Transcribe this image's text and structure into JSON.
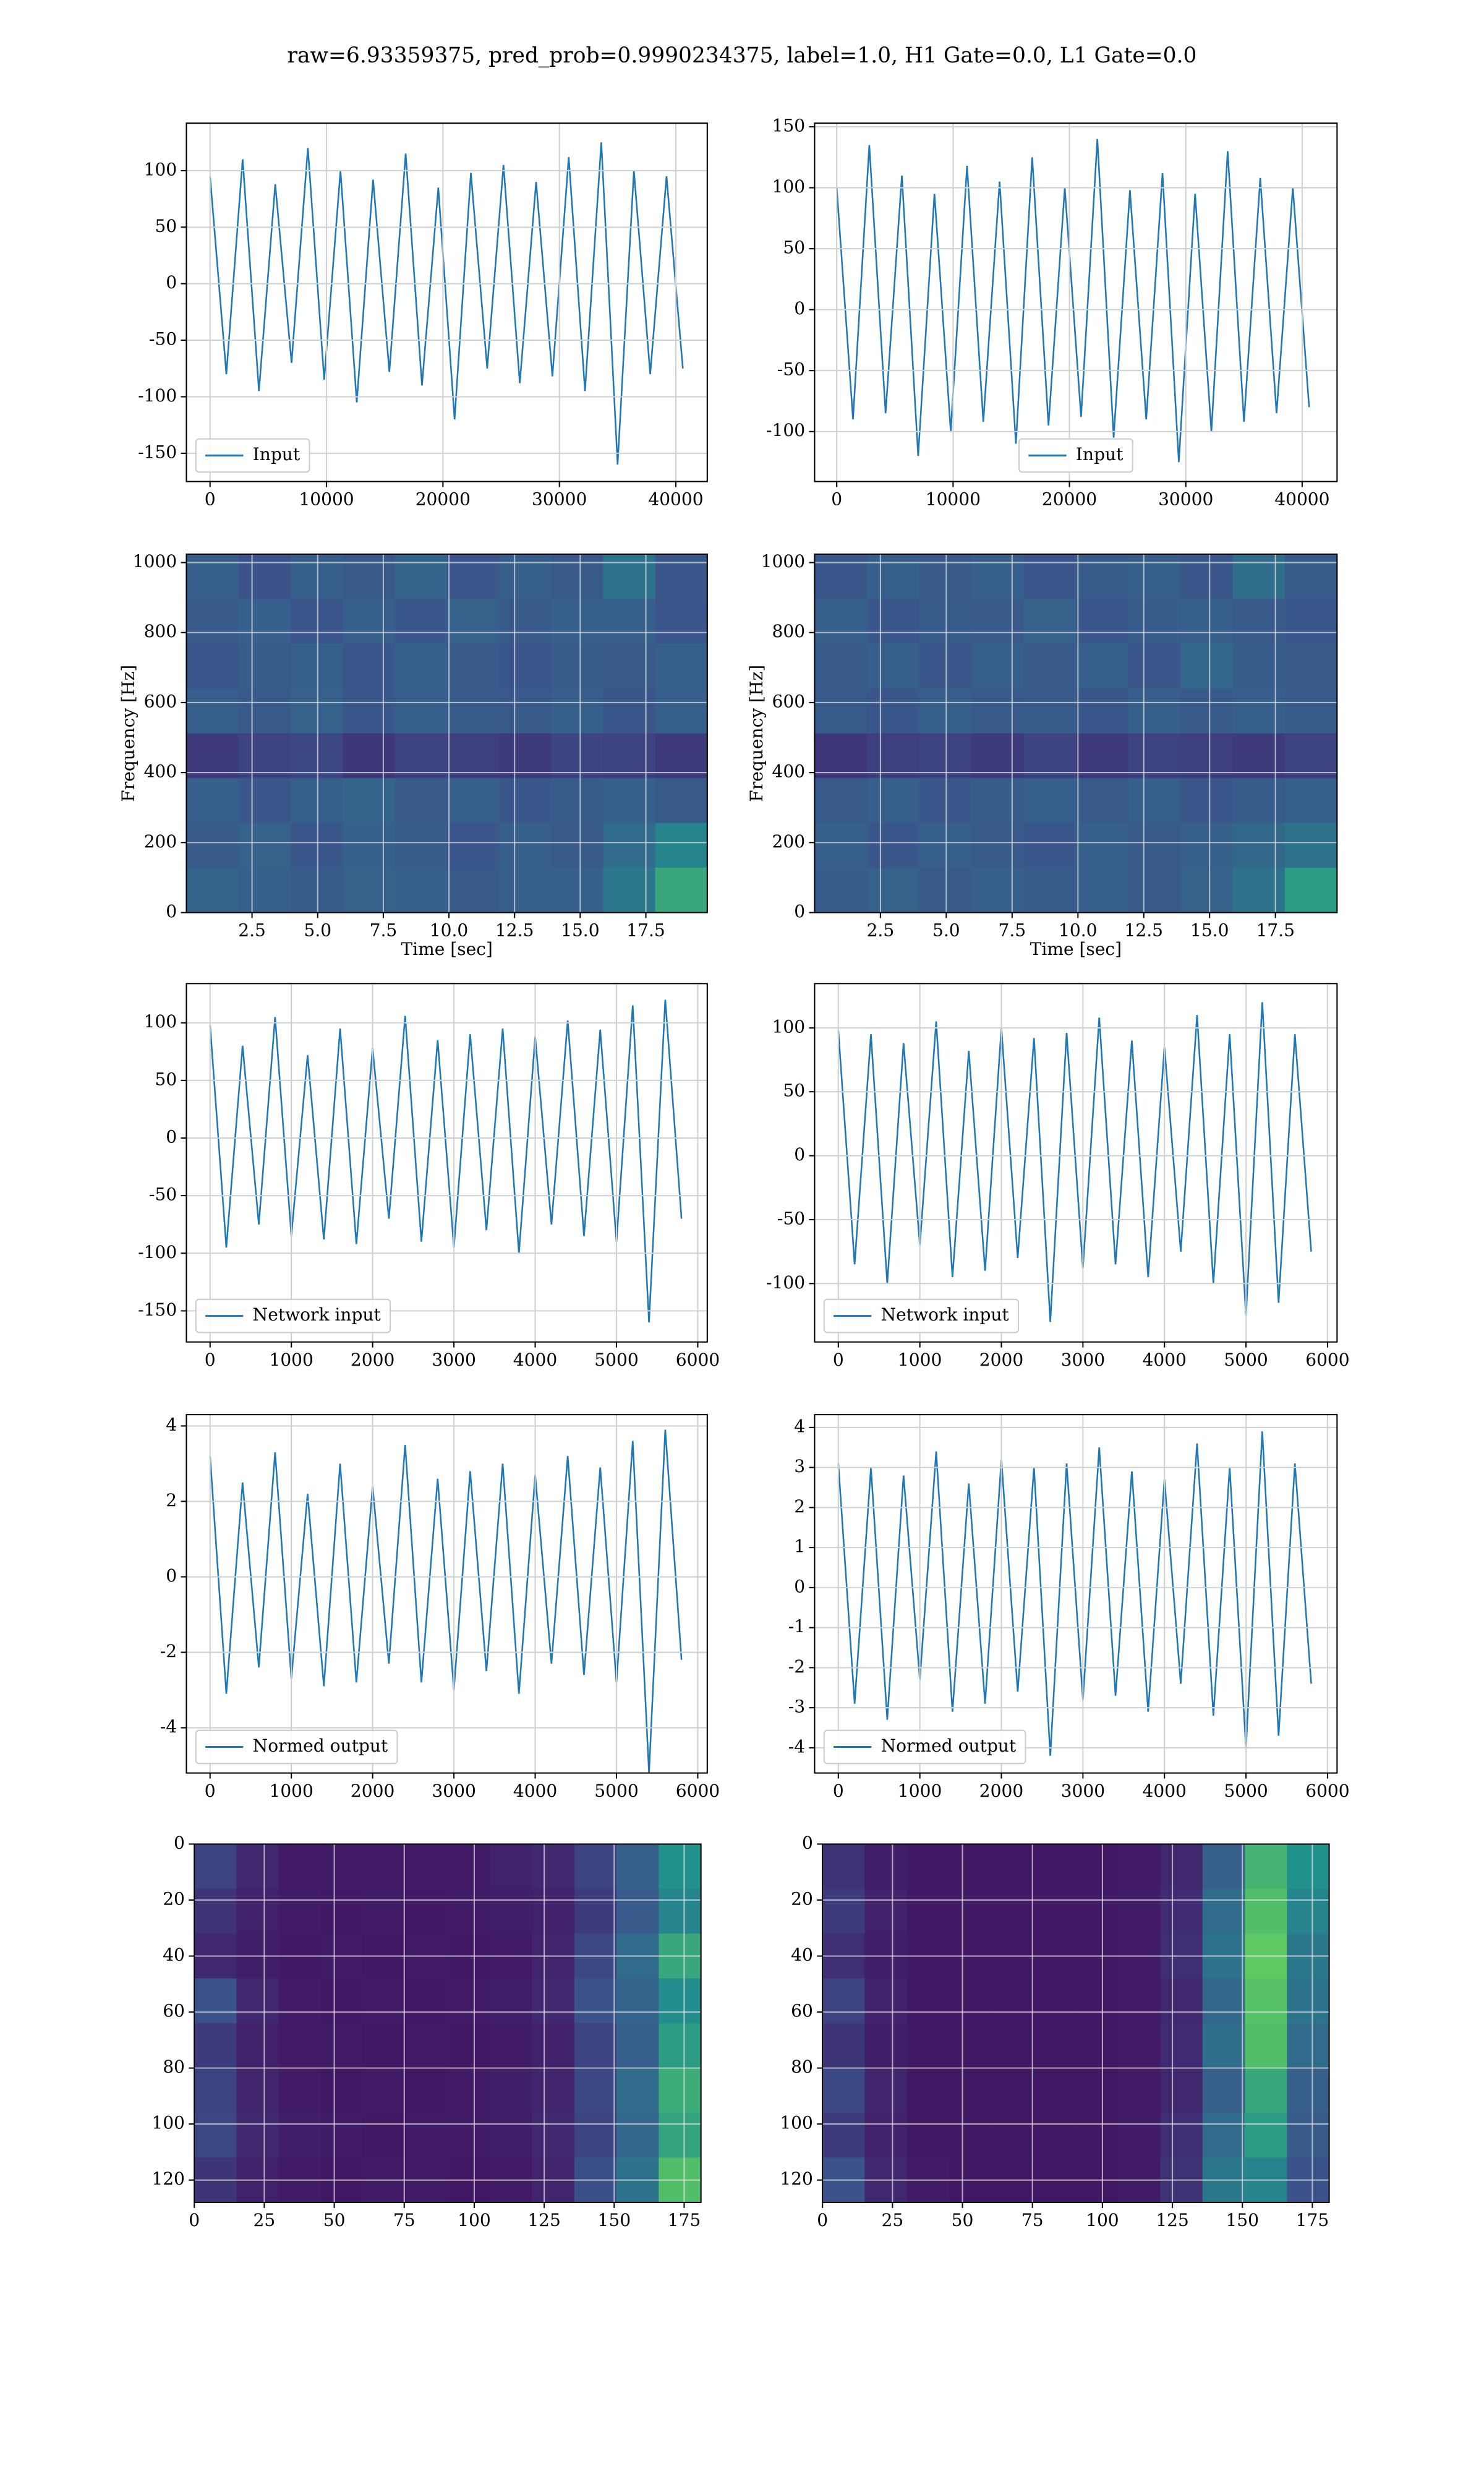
{
  "title": "raw=6.93359375, pred_prob=0.9990234375, label=1.0, H1 Gate=0.0, L1 Gate=0.0",
  "chart_data": [
    {
      "type": "line",
      "x": [
        0,
        1400,
        2800,
        4200,
        5600,
        7000,
        8400,
        9800,
        11200,
        12600,
        14000,
        15400,
        16800,
        18200,
        19600,
        21000,
        22400,
        23800,
        25200,
        26600,
        28000,
        29400,
        30800,
        32200,
        33600,
        35000,
        36400,
        37800,
        39200,
        40600
      ],
      "series": [
        {
          "name": "Input",
          "color": "#1f77b4",
          "values": [
            95,
            -80,
            110,
            -95,
            88,
            -70,
            120,
            -85,
            100,
            -105,
            92,
            -78,
            115,
            -90,
            85,
            -120,
            98,
            -75,
            105,
            -88,
            90,
            -82,
            112,
            -95,
            125,
            -160,
            100,
            -80,
            95,
            -75
          ]
        }
      ],
      "xlim": [
        -2030,
        42700
      ],
      "ylim": [
        -175,
        142
      ],
      "xticks": [
        0,
        10000,
        20000,
        30000,
        40000
      ],
      "yticks": [
        -150,
        -100,
        -50,
        0,
        50,
        100
      ],
      "grid": true,
      "legend": "lower left"
    },
    {
      "type": "line",
      "x": [
        0,
        1400,
        2800,
        4200,
        5600,
        7000,
        8400,
        9800,
        11200,
        12600,
        14000,
        15400,
        16800,
        18200,
        19600,
        21000,
        22400,
        23800,
        25200,
        26600,
        28000,
        29400,
        30800,
        32200,
        33600,
        35000,
        36400,
        37800,
        39200,
        40600
      ],
      "series": [
        {
          "name": "Input",
          "color": "#1f77b4",
          "values": [
            100,
            -90,
            135,
            -85,
            110,
            -120,
            95,
            -100,
            118,
            -92,
            105,
            -110,
            125,
            -95,
            100,
            -88,
            140,
            -105,
            98,
            -90,
            112,
            -125,
            95,
            -100,
            130,
            -92,
            108,
            -85,
            100,
            -80
          ]
        }
      ],
      "xlim": [
        -1900,
        43000
      ],
      "ylim": [
        -141,
        153
      ],
      "xticks": [
        0,
        10000,
        20000,
        30000,
        40000
      ],
      "yticks": [
        -100,
        -50,
        0,
        50,
        100,
        150
      ],
      "grid": true,
      "legend": "lower center"
    },
    {
      "type": "heatmap",
      "xlabel": "Time [sec]",
      "ylabel": "Frequency [Hz]",
      "colormap": "viridis",
      "xlim": [
        0,
        19.84
      ],
      "ylim": [
        0,
        1024
      ],
      "xticks": [
        2.5,
        {
          "value": 5,
          "label": "5.0"
        },
        7.5,
        {
          "value": 10,
          "label": "10.0"
        },
        12.5,
        {
          "value": 15,
          "label": "15.0"
        },
        17.5
      ],
      "yticks": [
        0,
        200,
        400,
        600,
        800,
        1000
      ],
      "grid": true,
      "z": [
        [
          0.3,
          0.25,
          0.3,
          0.28,
          0.32,
          0.26,
          0.3,
          0.28,
          0.38,
          0.27
        ],
        [
          0.28,
          0.3,
          0.26,
          0.3,
          0.27,
          0.31,
          0.28,
          0.3,
          0.3,
          0.26
        ],
        [
          0.26,
          0.29,
          0.3,
          0.27,
          0.3,
          0.28,
          0.26,
          0.29,
          0.28,
          0.3
        ],
        [
          0.3,
          0.28,
          0.31,
          0.27,
          0.3,
          0.29,
          0.28,
          0.3,
          0.27,
          0.3
        ],
        [
          0.18,
          0.2,
          0.22,
          0.17,
          0.2,
          0.19,
          0.18,
          0.21,
          0.2,
          0.18
        ],
        [
          0.3,
          0.27,
          0.3,
          0.32,
          0.28,
          0.3,
          0.27,
          0.29,
          0.3,
          0.28
        ],
        [
          0.28,
          0.31,
          0.27,
          0.3,
          0.29,
          0.26,
          0.3,
          0.28,
          0.35,
          0.45
        ],
        [
          0.32,
          0.3,
          0.29,
          0.31,
          0.3,
          0.28,
          0.3,
          0.3,
          0.4,
          0.6
        ]
      ]
    },
    {
      "type": "heatmap",
      "xlabel": "Time [sec]",
      "ylabel": "Frequency [Hz]",
      "colormap": "viridis",
      "xlim": [
        0,
        19.84
      ],
      "ylim": [
        0,
        1024
      ],
      "xticks": [
        2.5,
        {
          "value": 5,
          "label": "5.0"
        },
        7.5,
        {
          "value": 10,
          "label": "10.0"
        },
        12.5,
        {
          "value": 15,
          "label": "15.0"
        },
        17.5
      ],
      "yticks": [
        0,
        200,
        400,
        600,
        800,
        1000
      ],
      "grid": true,
      "z": [
        [
          0.27,
          0.3,
          0.28,
          0.3,
          0.26,
          0.29,
          0.3,
          0.27,
          0.36,
          0.29
        ],
        [
          0.3,
          0.27,
          0.29,
          0.28,
          0.31,
          0.27,
          0.29,
          0.3,
          0.28,
          0.27
        ],
        [
          0.28,
          0.3,
          0.27,
          0.3,
          0.28,
          0.3,
          0.27,
          0.33,
          0.29,
          0.28
        ],
        [
          0.29,
          0.27,
          0.3,
          0.28,
          0.29,
          0.27,
          0.3,
          0.28,
          0.3,
          0.29
        ],
        [
          0.17,
          0.19,
          0.2,
          0.18,
          0.21,
          0.18,
          0.2,
          0.19,
          0.18,
          0.2
        ],
        [
          0.28,
          0.3,
          0.27,
          0.29,
          0.3,
          0.28,
          0.3,
          0.27,
          0.29,
          0.3
        ],
        [
          0.3,
          0.27,
          0.3,
          0.28,
          0.27,
          0.3,
          0.28,
          0.3,
          0.34,
          0.38
        ],
        [
          0.29,
          0.31,
          0.28,
          0.3,
          0.29,
          0.3,
          0.28,
          0.31,
          0.38,
          0.55
        ]
      ]
    },
    {
      "type": "line",
      "x": [
        0,
        200,
        400,
        600,
        800,
        1000,
        1200,
        1400,
        1600,
        1800,
        2000,
        2200,
        2400,
        2600,
        2800,
        3000,
        3200,
        3400,
        3600,
        3800,
        4000,
        4200,
        4400,
        4600,
        4800,
        5000,
        5200,
        5400,
        5600,
        5800
      ],
      "series": [
        {
          "name": "Network input",
          "color": "#1f77b4",
          "values": [
            98,
            -95,
            80,
            -75,
            105,
            -85,
            72,
            -88,
            95,
            -92,
            78,
            -70,
            106,
            -90,
            85,
            -95,
            90,
            -80,
            95,
            -100,
            88,
            -75,
            102,
            -85,
            94,
            -90,
            115,
            -160,
            120,
            -70
          ]
        }
      ],
      "xlim": [
        -291,
        6117
      ],
      "ylim": [
        -177,
        134
      ],
      "xticks": [
        0,
        1000,
        2000,
        3000,
        4000,
        5000,
        6000
      ],
      "yticks": [
        -150,
        -100,
        -50,
        0,
        50,
        100
      ],
      "grid": true,
      "legend": "lower left"
    },
    {
      "type": "line",
      "x": [
        0,
        200,
        400,
        600,
        800,
        1000,
        1200,
        1400,
        1600,
        1800,
        2000,
        2200,
        2400,
        2600,
        2800,
        3000,
        3200,
        3400,
        3600,
        3800,
        4000,
        4200,
        4400,
        4600,
        4800,
        5000,
        5200,
        5400,
        5600,
        5800
      ],
      "series": [
        {
          "name": "Network input",
          "color": "#1f77b4",
          "values": [
            98,
            -85,
            95,
            -100,
            88,
            -70,
            105,
            -95,
            82,
            -90,
            100,
            -80,
            92,
            -130,
            96,
            -88,
            108,
            -85,
            90,
            -95,
            85,
            -75,
            110,
            -100,
            95,
            -125,
            120,
            -115,
            95,
            -75
          ]
        }
      ],
      "xlim": [
        -291,
        6117
      ],
      "ylim": [
        -145.7,
        134.6
      ],
      "xticks": [
        0,
        1000,
        2000,
        3000,
        4000,
        5000,
        6000
      ],
      "yticks": [
        -100,
        -50,
        0,
        50,
        100
      ],
      "grid": true,
      "legend": "lower left"
    },
    {
      "type": "line",
      "x": [
        0,
        200,
        400,
        600,
        800,
        1000,
        1200,
        1400,
        1600,
        1800,
        2000,
        2200,
        2400,
        2600,
        2800,
        3000,
        3200,
        3400,
        3600,
        3800,
        4000,
        4200,
        4400,
        4600,
        4800,
        5000,
        5200,
        5400,
        5600,
        5800
      ],
      "series": [
        {
          "name": "Normed output",
          "color": "#1f77b4",
          "values": [
            3.2,
            -3.1,
            2.5,
            -2.4,
            3.3,
            -2.7,
            2.2,
            -2.9,
            3.0,
            -2.8,
            2.4,
            -2.3,
            3.5,
            -2.8,
            2.6,
            -3.0,
            2.8,
            -2.5,
            3.0,
            -3.1,
            2.7,
            -2.3,
            3.2,
            -2.6,
            2.9,
            -2.8,
            3.6,
            -5.2,
            3.9,
            -2.2
          ]
        }
      ],
      "xlim": [
        -291,
        6117
      ],
      "ylim": [
        -5.2,
        4.3
      ],
      "xticks": [
        0,
        1000,
        2000,
        3000,
        4000,
        5000,
        6000
      ],
      "yticks": [
        -4,
        -2,
        0,
        2,
        4
      ],
      "grid": true,
      "legend": "lower left"
    },
    {
      "type": "line",
      "x": [
        0,
        200,
        400,
        600,
        800,
        1000,
        1200,
        1400,
        1600,
        1800,
        2000,
        2200,
        2400,
        2600,
        2800,
        3000,
        3200,
        3400,
        3600,
        3800,
        4000,
        4200,
        4400,
        4600,
        4800,
        5000,
        5200,
        5400,
        5600,
        5800
      ],
      "series": [
        {
          "name": "Normed output",
          "color": "#1f77b4",
          "values": [
            3.1,
            -2.9,
            3.0,
            -3.3,
            2.8,
            -2.3,
            3.4,
            -3.1,
            2.6,
            -2.9,
            3.2,
            -2.6,
            3.0,
            -4.2,
            3.1,
            -2.8,
            3.5,
            -2.7,
            2.9,
            -3.1,
            2.7,
            -2.4,
            3.6,
            -3.2,
            3.0,
            -4.0,
            3.9,
            -3.7,
            3.1,
            -2.4
          ]
        }
      ],
      "xlim": [
        -291,
        6117
      ],
      "ylim": [
        -4.63,
        4.32
      ],
      "xticks": [
        0,
        1000,
        2000,
        3000,
        4000,
        5000,
        6000
      ],
      "yticks": [
        -4,
        -3,
        -2,
        -1,
        0,
        1,
        2,
        3,
        4
      ],
      "grid": true,
      "legend": "lower left"
    },
    {
      "type": "heatmap",
      "colormap": "viridis",
      "xlim": [
        0,
        181
      ],
      "ylim": [
        128,
        0
      ],
      "xticks": [
        0,
        25,
        50,
        75,
        100,
        125,
        150,
        175
      ],
      "yticks": [
        0,
        20,
        40,
        60,
        80,
        100,
        120
      ],
      "grid": true,
      "z": [
        [
          0.2,
          0.12,
          0.08,
          0.08,
          0.08,
          0.08,
          0.08,
          0.1,
          0.12,
          0.2,
          0.3,
          0.5
        ],
        [
          0.15,
          0.1,
          0.08,
          0.07,
          0.08,
          0.07,
          0.08,
          0.09,
          0.1,
          0.18,
          0.28,
          0.45
        ],
        [
          0.12,
          0.09,
          0.07,
          0.08,
          0.07,
          0.08,
          0.07,
          0.08,
          0.11,
          0.22,
          0.35,
          0.6
        ],
        [
          0.25,
          0.12,
          0.08,
          0.07,
          0.08,
          0.07,
          0.08,
          0.09,
          0.12,
          0.25,
          0.32,
          0.48
        ],
        [
          0.18,
          0.1,
          0.08,
          0.08,
          0.07,
          0.08,
          0.07,
          0.08,
          0.1,
          0.2,
          0.3,
          0.55
        ],
        [
          0.2,
          0.11,
          0.08,
          0.07,
          0.08,
          0.07,
          0.08,
          0.09,
          0.11,
          0.22,
          0.35,
          0.62
        ],
        [
          0.22,
          0.12,
          0.09,
          0.08,
          0.07,
          0.08,
          0.08,
          0.09,
          0.12,
          0.2,
          0.33,
          0.58
        ],
        [
          0.16,
          0.1,
          0.08,
          0.07,
          0.08,
          0.08,
          0.07,
          0.08,
          0.11,
          0.24,
          0.38,
          0.7
        ]
      ]
    },
    {
      "type": "heatmap",
      "colormap": "viridis",
      "xlim": [
        0,
        181
      ],
      "ylim": [
        128,
        0
      ],
      "xticks": [
        0,
        25,
        50,
        75,
        100,
        125,
        150,
        175
      ],
      "yticks": [
        0,
        20,
        40,
        60,
        80,
        100,
        120
      ],
      "grid": true,
      "z": [
        [
          0.15,
          0.09,
          0.07,
          0.07,
          0.07,
          0.07,
          0.07,
          0.08,
          0.12,
          0.3,
          0.65,
          0.5
        ],
        [
          0.18,
          0.1,
          0.07,
          0.07,
          0.07,
          0.07,
          0.07,
          0.08,
          0.13,
          0.35,
          0.7,
          0.45
        ],
        [
          0.14,
          0.09,
          0.07,
          0.07,
          0.07,
          0.07,
          0.07,
          0.08,
          0.14,
          0.38,
          0.75,
          0.4
        ],
        [
          0.2,
          0.1,
          0.07,
          0.07,
          0.07,
          0.07,
          0.07,
          0.08,
          0.12,
          0.33,
          0.72,
          0.38
        ],
        [
          0.16,
          0.09,
          0.07,
          0.07,
          0.07,
          0.07,
          0.07,
          0.08,
          0.13,
          0.36,
          0.7,
          0.35
        ],
        [
          0.22,
          0.11,
          0.07,
          0.07,
          0.07,
          0.07,
          0.07,
          0.08,
          0.12,
          0.3,
          0.6,
          0.3
        ],
        [
          0.18,
          0.1,
          0.07,
          0.07,
          0.07,
          0.07,
          0.07,
          0.08,
          0.14,
          0.35,
          0.55,
          0.28
        ],
        [
          0.25,
          0.12,
          0.08,
          0.07,
          0.07,
          0.07,
          0.07,
          0.08,
          0.15,
          0.4,
          0.45,
          0.25
        ]
      ]
    }
  ]
}
